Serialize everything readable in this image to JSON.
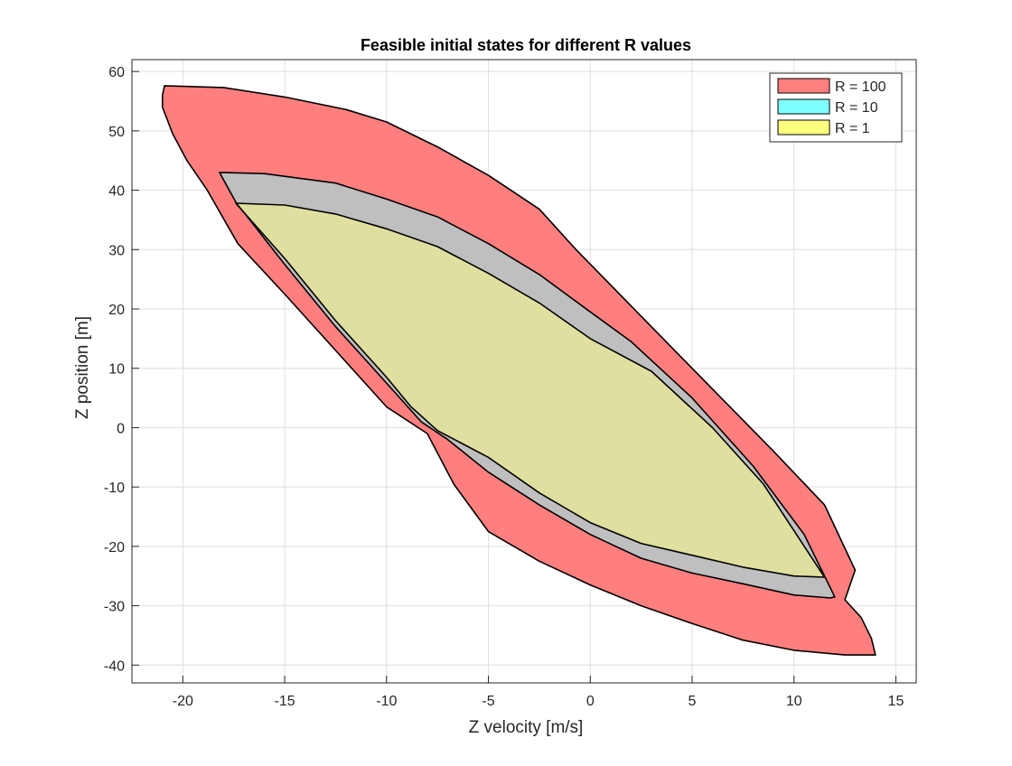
{
  "chart_data": {
    "type": "area",
    "title": "Feasible initial states for different R values",
    "xlabel": "Z velocity [m/s]",
    "ylabel": "Z position [m]",
    "xlim": [
      -22.5,
      16
    ],
    "ylim": [
      -43,
      62
    ],
    "xticks": [
      -20,
      -15,
      -10,
      -5,
      0,
      5,
      10,
      15
    ],
    "yticks": [
      -40,
      -30,
      -20,
      -10,
      0,
      10,
      20,
      30,
      40,
      50,
      60
    ],
    "grid": true,
    "legend_position": "top-right",
    "series": [
      {
        "name": "R = 100",
        "color": "#ff7f7f",
        "polygon": [
          [
            -20.9,
            57.6
          ],
          [
            -18,
            57.3
          ],
          [
            -15,
            55.7
          ],
          [
            -12,
            53.6
          ],
          [
            -10,
            51.5
          ],
          [
            -7.5,
            47.3
          ],
          [
            -5,
            42.5
          ],
          [
            -2.5,
            36.8
          ],
          [
            -0.7,
            30.0
          ],
          [
            3,
            17.0
          ],
          [
            6,
            6.5
          ],
          [
            9,
            -4.0
          ],
          [
            11.5,
            -13.0
          ],
          [
            13.0,
            -24.0
          ],
          [
            12.5,
            -29.0
          ],
          [
            13.3,
            -32.0
          ],
          [
            13.8,
            -35.5
          ],
          [
            14.0,
            -38.3
          ],
          [
            12.5,
            -38.3
          ],
          [
            10,
            -37.5
          ],
          [
            7.5,
            -35.8
          ],
          [
            5,
            -33.0
          ],
          [
            2.5,
            -30.0
          ],
          [
            0,
            -26.5
          ],
          [
            -2.5,
            -22.5
          ],
          [
            -5,
            -17.5
          ],
          [
            -6.7,
            -9.5
          ],
          [
            -8.0,
            -1.0
          ],
          [
            -10,
            3.5
          ],
          [
            -12.5,
            13.0
          ],
          [
            -15,
            22.5
          ],
          [
            -17.3,
            31.0
          ],
          [
            -18.8,
            40.0
          ],
          [
            -19.8,
            45.0
          ],
          [
            -20.5,
            49.5
          ],
          [
            -21.0,
            54.0
          ],
          [
            -21.0,
            56.0
          ]
        ]
      },
      {
        "name": "R = 10",
        "color": "#7fffff",
        "polygon": [
          [
            -18.2,
            43.0
          ],
          [
            -16,
            42.8
          ],
          [
            -12.5,
            41.2
          ],
          [
            -10,
            38.5
          ],
          [
            -7.5,
            35.5
          ],
          [
            -5,
            31.0
          ],
          [
            -2.5,
            25.8
          ],
          [
            0,
            19.5
          ],
          [
            2,
            14.5
          ],
          [
            5,
            5.0
          ],
          [
            8,
            -6.5
          ],
          [
            10.5,
            -18.0
          ],
          [
            12.0,
            -28.5
          ],
          [
            11.8,
            -28.7
          ],
          [
            10,
            -28.2
          ],
          [
            7.5,
            -26.3
          ],
          [
            5,
            -24.5
          ],
          [
            2.5,
            -22.0
          ],
          [
            0,
            -18.0
          ],
          [
            -2.5,
            -13.0
          ],
          [
            -5,
            -7.5
          ],
          [
            -7.0,
            -2.0
          ],
          [
            -8.3,
            1.0
          ],
          [
            -10,
            7.5
          ],
          [
            -12.5,
            17.0
          ],
          [
            -15,
            27.5
          ],
          [
            -17.4,
            38.0
          ]
        ]
      },
      {
        "name": "R = 1",
        "color": "#ffff7f",
        "polygon": [
          [
            -17.4,
            37.8
          ],
          [
            -15,
            37.5
          ],
          [
            -12.5,
            36.0
          ],
          [
            -10,
            33.5
          ],
          [
            -7.5,
            30.5
          ],
          [
            -5,
            26.0
          ],
          [
            -2.5,
            21.0
          ],
          [
            0,
            15.0
          ],
          [
            3,
            9.5
          ],
          [
            6,
            0.0
          ],
          [
            8.5,
            -9.5
          ],
          [
            11.5,
            -25.2
          ],
          [
            10,
            -25.0
          ],
          [
            7.5,
            -23.5
          ],
          [
            5,
            -21.5
          ],
          [
            2.5,
            -19.5
          ],
          [
            0,
            -16.0
          ],
          [
            -2.5,
            -11.0
          ],
          [
            -5,
            -5.0
          ],
          [
            -7.5,
            -0.5
          ],
          [
            -8.8,
            3.5
          ],
          [
            -10,
            8.5
          ],
          [
            -12.5,
            18.0
          ],
          [
            -15,
            28.5
          ]
        ]
      }
    ]
  }
}
